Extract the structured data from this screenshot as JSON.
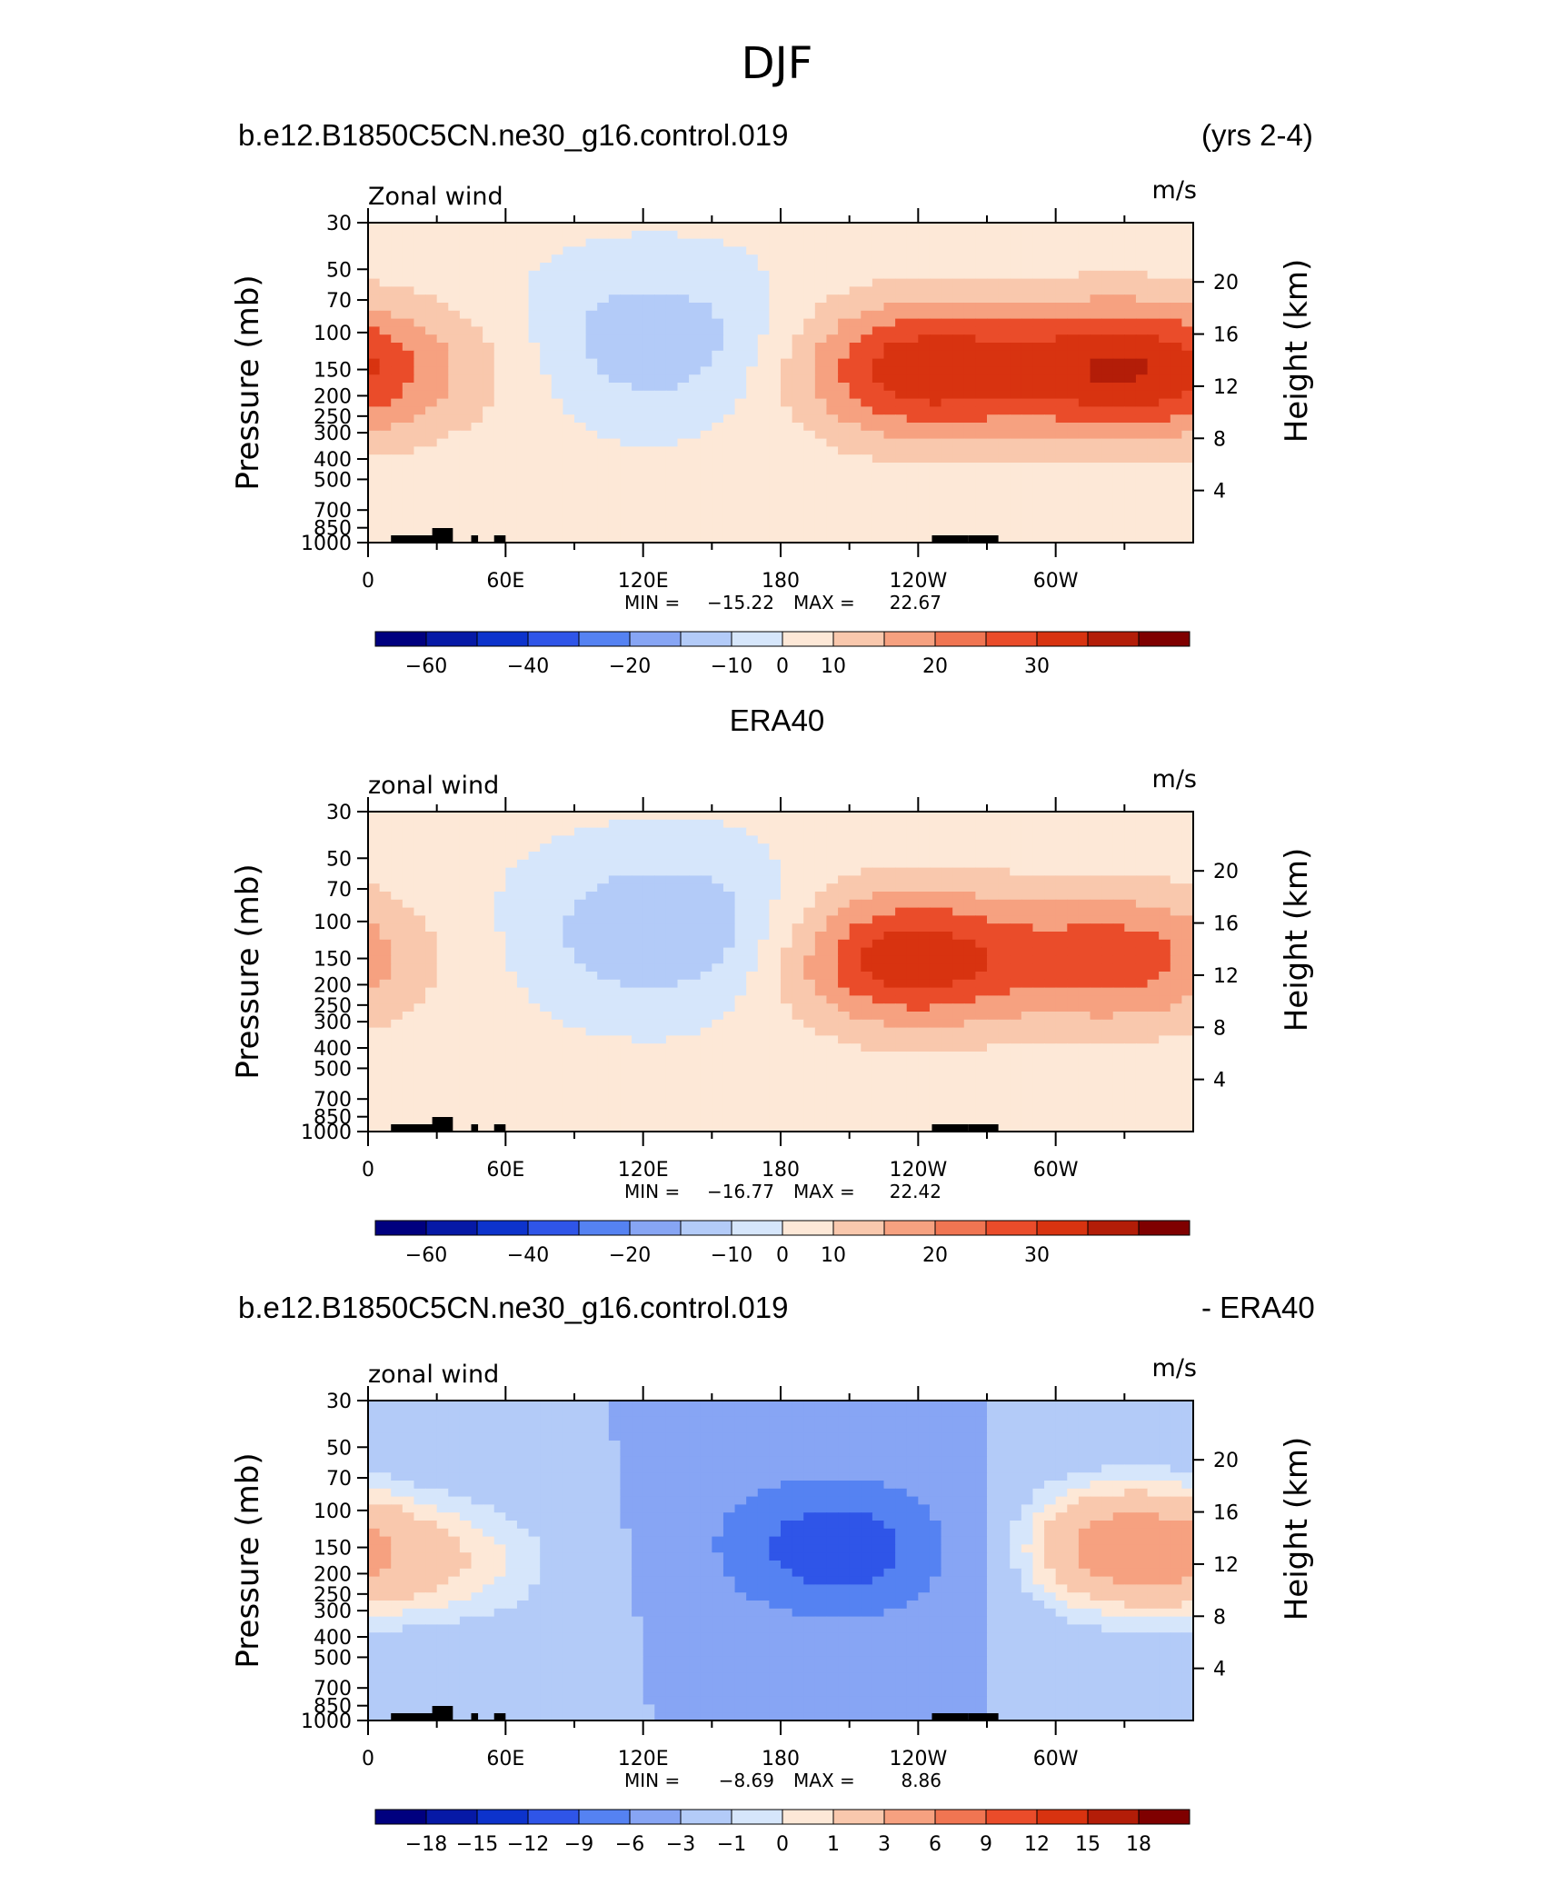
{
  "page": {
    "title": "DJF"
  },
  "headers": {
    "panel1_left": "b.e12.B1850C5CN.ne30_g16.control.019",
    "panel1_right": "(yrs 2-4)",
    "panel2_center": "ERA40",
    "panel3_left": "b.e12.B1850C5CN.ne30_g16.control.019",
    "panel3_right": "- ERA40"
  },
  "colors": {
    "blue_to_red": [
      "#00007f",
      "#0619a6",
      "#0d33cc",
      "#2f55e8",
      "#5582f2",
      "#87a5f4",
      "#b3cbf8",
      "#d6e6fb",
      "#fde8d7",
      "#f9c8ad",
      "#f6a180",
      "#f07552",
      "#ea4c2a",
      "#d83310",
      "#b31d08",
      "#7f0000"
    ]
  },
  "chart_data": [
    {
      "type": "heatmap",
      "title": "",
      "left_label": "Zonal wind",
      "units": "m/s",
      "ylabel": "Pressure (mb)",
      "ylabel_right": "Height (km)",
      "y_ticks": [
        "30",
        "50",
        "70",
        "100",
        "150",
        "200",
        "250",
        "300",
        "400",
        "500",
        "700",
        "850",
        "1000"
      ],
      "y_right_ticks": [
        "20",
        "16",
        "12",
        "8",
        "4"
      ],
      "x_ticks": [
        "0",
        "60E",
        "120E",
        "180",
        "120W",
        "60W"
      ],
      "stats": {
        "min_label": "MIN =",
        "min": "−15.22",
        "max_label": "MAX =",
        "max": "22.67"
      },
      "colorbar_labels": [
        "−60",
        "−40",
        "−20",
        "−10",
        "0",
        "10",
        "20",
        "30"
      ],
      "features": [
        {
          "lon": 30,
          "lev": 150,
          "value": 5
        },
        {
          "lon": 125,
          "lev": 110,
          "value": -10
        },
        {
          "lon": 240,
          "lev": 150,
          "value": 22
        },
        {
          "lon": 330,
          "lev": 150,
          "value": 22
        }
      ]
    },
    {
      "type": "heatmap",
      "title": "",
      "left_label": "zonal wind",
      "units": "m/s",
      "ylabel": "Pressure (mb)",
      "ylabel_right": "Height (km)",
      "y_ticks": [
        "30",
        "50",
        "70",
        "100",
        "150",
        "200",
        "250",
        "300",
        "400",
        "500",
        "700",
        "850",
        "1000"
      ],
      "y_right_ticks": [
        "20",
        "16",
        "12",
        "8",
        "4"
      ],
      "x_ticks": [
        "0",
        "60E",
        "120E",
        "180",
        "120W",
        "60W"
      ],
      "stats": {
        "min_label": "MIN =",
        "min": "−16.77",
        "max_label": "MAX =",
        "max": "22.42"
      },
      "colorbar_labels": [
        "−60",
        "−40",
        "−20",
        "−10",
        "0",
        "10",
        "20",
        "30"
      ],
      "features": [
        {
          "lon": 130,
          "lev": 110,
          "value": -12
        },
        {
          "lon": 235,
          "lev": 150,
          "value": 22
        },
        {
          "lon": 330,
          "lev": 150,
          "value": 16
        }
      ]
    },
    {
      "type": "heatmap",
      "title": "",
      "left_label": "zonal wind",
      "units": "m/s",
      "ylabel": "Pressure (mb)",
      "ylabel_right": "Height (km)",
      "y_ticks": [
        "30",
        "50",
        "70",
        "100",
        "150",
        "200",
        "250",
        "300",
        "400",
        "500",
        "700",
        "850",
        "1000"
      ],
      "y_right_ticks": [
        "20",
        "16",
        "12",
        "8",
        "4"
      ],
      "x_ticks": [
        "0",
        "60E",
        "120E",
        "180",
        "120W",
        "60W"
      ],
      "stats": {
        "min_label": "MIN =",
        "min": "−8.69",
        "max_label": "MAX =",
        "max": "8.86"
      },
      "colorbar_labels": [
        "−18",
        "−15",
        "−12",
        "−9",
        "−6",
        "−3",
        "−1",
        "0",
        "1",
        "3",
        "6",
        "9",
        "12",
        "15",
        "18"
      ],
      "features": [
        {
          "lon": 205,
          "lev": 150,
          "value": -8
        },
        {
          "lon": 330,
          "lev": 150,
          "value": 7
        },
        {
          "lon": 40,
          "lev": 180,
          "value": 3
        }
      ]
    }
  ]
}
